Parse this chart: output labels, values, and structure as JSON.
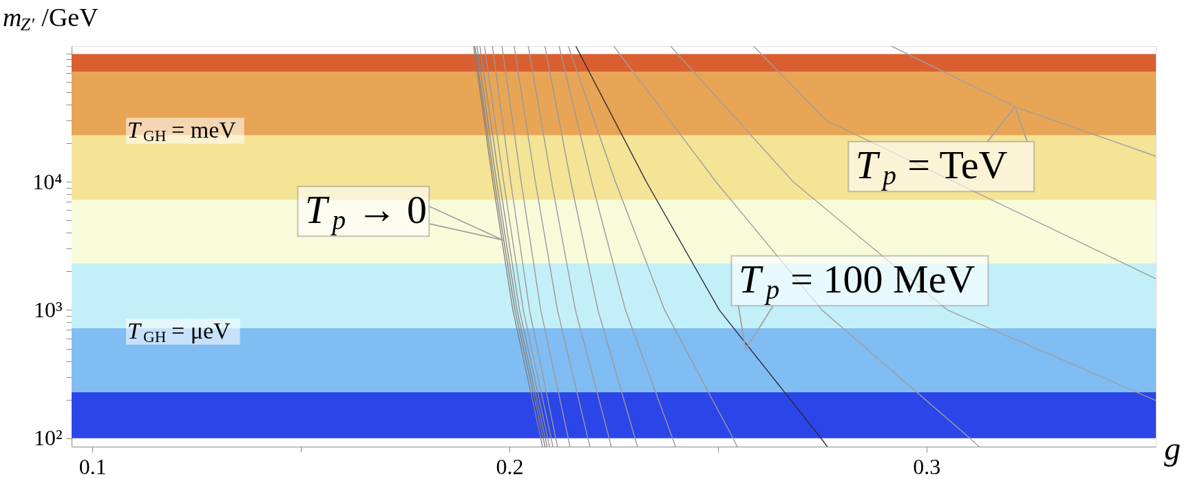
{
  "chart_data": {
    "type": "line",
    "ylabel": "m$_{Z′}$/GeV",
    "xlabel": "g",
    "xlim": [
      0.095,
      0.355
    ],
    "ylim": [
      86,
      114000
    ],
    "log": "y",
    "grid": false,
    "line_style": "solid",
    "xticks": [
      0.1,
      {
        "value": 0.15,
        "label": null
      },
      0.2,
      {
        "value": 0.25,
        "label": null
      },
      0.3
    ],
    "yticks": [
      {
        "value": 100,
        "label": "10²"
      },
      {
        "value": 200,
        "label": null
      },
      {
        "value": 300,
        "label": null
      },
      {
        "value": 400,
        "label": null
      },
      {
        "value": 500,
        "label": null
      },
      {
        "value": 600,
        "label": null
      },
      {
        "value": 700,
        "label": null
      },
      {
        "value": 800,
        "label": null
      },
      {
        "value": 900,
        "label": null
      },
      {
        "value": 1000,
        "label": "10³"
      },
      {
        "value": 2000,
        "label": null
      },
      {
        "value": 3000,
        "label": null
      },
      {
        "value": 4000,
        "label": null
      },
      {
        "value": 5000,
        "label": null
      },
      {
        "value": 6000,
        "label": null
      },
      {
        "value": 7000,
        "label": null
      },
      {
        "value": 8000,
        "label": null
      },
      {
        "value": 9000,
        "label": null
      },
      {
        "value": 10000,
        "label": "10⁴"
      },
      {
        "value": 20000,
        "label": null
      },
      {
        "value": 30000,
        "label": null
      },
      {
        "value": 40000,
        "label": null
      },
      {
        "value": 50000,
        "label": null
      },
      {
        "value": 60000,
        "label": null
      },
      {
        "value": 70000,
        "label": null
      },
      {
        "value": 80000,
        "label": null
      },
      {
        "value": 90000,
        "label": null
      },
      {
        "value": 100000,
        "label": null
      }
    ],
    "bands": [
      {
        "axis": "y",
        "from": 100,
        "to": 228,
        "color": "#2b45e8"
      },
      {
        "axis": "y",
        "from": 228,
        "to": 720,
        "color": "#80bdf2"
      },
      {
        "axis": "y",
        "from": 720,
        "to": 2300,
        "color": "#c3f0f8"
      },
      {
        "axis": "y",
        "from": 2300,
        "to": 7200,
        "color": "#f8fbda"
      },
      {
        "axis": "y",
        "from": 7200,
        "to": 23000,
        "color": "#f5e396"
      },
      {
        "axis": "y",
        "from": 23000,
        "to": 72000,
        "color": "#e8a555"
      },
      {
        "axis": "y",
        "from": 72000,
        "to": 99000,
        "color": "#d95f30"
      }
    ],
    "series": [
      {
        "color": "#808080",
        "x": [
          0.1914,
          0.196,
          0.2008,
          0.2075,
          0.2079
        ],
        "values": [
          114000,
          10000,
          1000,
          100,
          86
        ]
      },
      {
        "color": "#808080",
        "x": [
          0.1917,
          0.1964,
          0.2013,
          0.2081,
          0.2085
        ],
        "values": [
          114000,
          10000,
          1000,
          100,
          86
        ]
      },
      {
        "color": "#888888",
        "x": [
          0.1922,
          0.1969,
          0.2018,
          0.2086,
          0.209
        ],
        "values": [
          114000,
          10000,
          1000,
          100,
          86
        ]
      },
      {
        "color": "#909090",
        "x": [
          0.1929,
          0.1976,
          0.2024,
          0.2092,
          0.2096
        ],
        "values": [
          114000,
          10000,
          1000,
          100,
          86
        ]
      },
      {
        "color": "#999999",
        "x": [
          0.194,
          0.1986,
          0.2033,
          0.21,
          0.2104
        ],
        "values": [
          114000,
          10000,
          1000,
          100,
          86
        ]
      },
      {
        "color": "#999999",
        "x": [
          0.1959,
          0.2003,
          0.2048,
          0.2111,
          0.2115
        ],
        "values": [
          114000,
          10000,
          1000,
          100,
          86
        ]
      },
      {
        "color": "#999999",
        "x": [
          0.1982,
          0.2028,
          0.2075,
          0.2141,
          0.2145
        ],
        "values": [
          114000,
          10000,
          1000,
          100,
          86
        ]
      },
      {
        "color": "#999999",
        "x": [
          0.2011,
          0.2062,
          0.2115,
          0.2188,
          0.2193
        ],
        "values": [
          114000,
          10000,
          1000,
          100,
          86
        ]
      },
      {
        "color": "#999999",
        "x": [
          0.2045,
          0.2101,
          0.2158,
          0.2239,
          0.2244
        ],
        "values": [
          114000,
          10000,
          1000,
          100,
          86
        ]
      },
      {
        "color": "#999999",
        "x": [
          0.2085,
          0.2147,
          0.2212,
          0.2301,
          0.2307
        ],
        "values": [
          114000,
          10000,
          1000,
          100,
          86
        ]
      },
      {
        "color": "#999999",
        "x": [
          0.2119,
          0.2197,
          0.2278,
          0.2391,
          0.2398
        ],
        "values": [
          114000,
          10000,
          1000,
          100,
          86
        ]
      },
      {
        "color": "#999999",
        "x": [
          0.2141,
          0.2254,
          0.2372,
          0.2536,
          0.2546
        ],
        "values": [
          114000,
          10000,
          1000,
          100,
          86
        ]
      },
      {
        "color": "#2a2a3a",
        "x": [
          0.2159,
          0.2328,
          0.2503,
          0.2747,
          0.2762
        ],
        "values": [
          114000,
          10000,
          1000,
          100,
          86
        ]
      },
      {
        "color": "#a0a0a0",
        "x": [
          0.225,
          0.2495,
          0.2749,
          0.3104,
          0.3126
        ],
        "values": [
          114000,
          10000,
          1000,
          100,
          86
        ]
      },
      {
        "color": "#a0a0a0",
        "x": [
          0.2386,
          0.268,
          0.305,
          0.355
        ],
        "values": [
          114000,
          10000,
          1000,
          197
        ]
      },
      {
        "color": "#a0a0a0",
        "x": [
          0.2585,
          0.276,
          0.355
        ],
        "values": [
          114000,
          30000,
          1750
        ]
      },
      {
        "color": "#a0a0a0",
        "x": [
          0.2916,
          0.3212,
          0.355
        ],
        "values": [
          114000,
          38400,
          15800
        ]
      }
    ],
    "annotations": [
      "T$_{GH}$ = meV",
      "T$_{GH}$ = μeV",
      {
        "text": "T$_{p}$ → 0",
        "x": 0.1985,
        "y": 3500
      },
      {
        "text": "T$_{p}$ = TeV",
        "x": 0.3212,
        "y": 38400
      },
      "T$_{p}$ = 100 MeV"
    ]
  }
}
